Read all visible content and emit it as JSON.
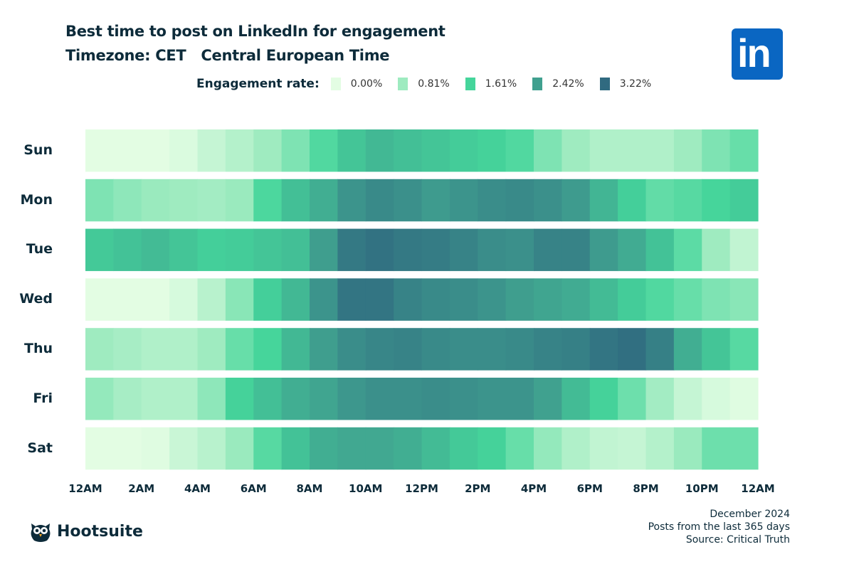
{
  "header": {
    "title": "Best time to post on LinkedIn for engagement",
    "subtitle": "Timezone: CET   Central European Time"
  },
  "logos": {
    "linkedin": "in",
    "hootsuite": "Hootsuite"
  },
  "footer": {
    "date": "December 2024",
    "range": "Posts from the last 365 days",
    "source": "Source: Critical Truth"
  },
  "chart_data": {
    "type": "heatmap",
    "title": "Best time to post on LinkedIn for engagement",
    "legend_title": "Engagement rate:",
    "legend": [
      {
        "label": "0.00%",
        "value": 0.0,
        "color": "#e3fde3"
      },
      {
        "label": "0.81%",
        "value": 0.81,
        "color": "#9eebc0"
      },
      {
        "label": "1.61%",
        "value": 1.61,
        "color": "#45d59b"
      },
      {
        "label": "2.42%",
        "value": 2.42,
        "color": "#40a08f"
      },
      {
        "label": "3.22%",
        "value": 3.22,
        "color": "#306a80"
      }
    ],
    "legend_placement": "top",
    "rows": [
      "Sun",
      "Mon",
      "Tue",
      "Wed",
      "Thu",
      "Fri",
      "Sat"
    ],
    "x_tick_labels": [
      "12AM",
      "2AM",
      "4AM",
      "6AM",
      "8AM",
      "10AM",
      "12PM",
      "2PM",
      "4PM",
      "6PM",
      "8PM",
      "10PM",
      "12AM"
    ],
    "hours_per_cell": 1,
    "unit": "%",
    "values": [
      [
        0,
        0,
        0,
        0.1,
        0.35,
        0.55,
        0.8,
        1.1,
        1.5,
        1.85,
        2.05,
        1.95,
        1.85,
        1.75,
        1.65,
        1.5,
        1.1,
        0.8,
        0.6,
        0.6,
        0.6,
        0.8,
        1.1,
        1.3
      ],
      [
        1.1,
        0.95,
        0.85,
        0.8,
        0.75,
        0.85,
        1.55,
        1.95,
        2.2,
        2.6,
        2.75,
        2.65,
        2.5,
        2.6,
        2.7,
        2.75,
        2.65,
        2.5,
        2.1,
        1.7,
        1.35,
        1.45,
        1.6,
        1.75
      ],
      [
        1.8,
        1.9,
        2.0,
        1.85,
        1.7,
        1.75,
        1.85,
        1.95,
        2.45,
        3.0,
        3.1,
        3.0,
        2.95,
        2.85,
        2.7,
        2.65,
        2.85,
        2.85,
        2.5,
        2.25,
        1.9,
        1.4,
        0.8,
        0.4
      ],
      [
        0,
        0,
        0,
        0.15,
        0.5,
        1.0,
        1.7,
        2.05,
        2.6,
        3.05,
        3.05,
        2.85,
        2.75,
        2.7,
        2.6,
        2.45,
        2.35,
        2.25,
        2.0,
        1.75,
        1.5,
        1.3,
        1.1,
        1.0
      ],
      [
        0.8,
        0.7,
        0.6,
        0.6,
        0.8,
        1.3,
        1.6,
        2.05,
        2.45,
        2.7,
        2.8,
        2.85,
        2.75,
        2.7,
        2.7,
        2.75,
        2.85,
        2.9,
        3.05,
        3.15,
        2.9,
        2.2,
        1.85,
        1.45
      ],
      [
        0.9,
        0.7,
        0.6,
        0.6,
        0.95,
        1.65,
        1.95,
        2.2,
        2.35,
        2.55,
        2.65,
        2.65,
        2.7,
        2.65,
        2.6,
        2.6,
        2.4,
        2.0,
        1.65,
        1.25,
        0.75,
        0.35,
        0.15,
        0.05
      ],
      [
        0,
        0,
        0.05,
        0.3,
        0.5,
        0.85,
        1.45,
        1.9,
        2.2,
        2.3,
        2.3,
        2.2,
        2.0,
        1.8,
        1.65,
        1.3,
        0.9,
        0.6,
        0.4,
        0.35,
        0.55,
        0.85,
        1.25,
        1.25
      ]
    ]
  }
}
